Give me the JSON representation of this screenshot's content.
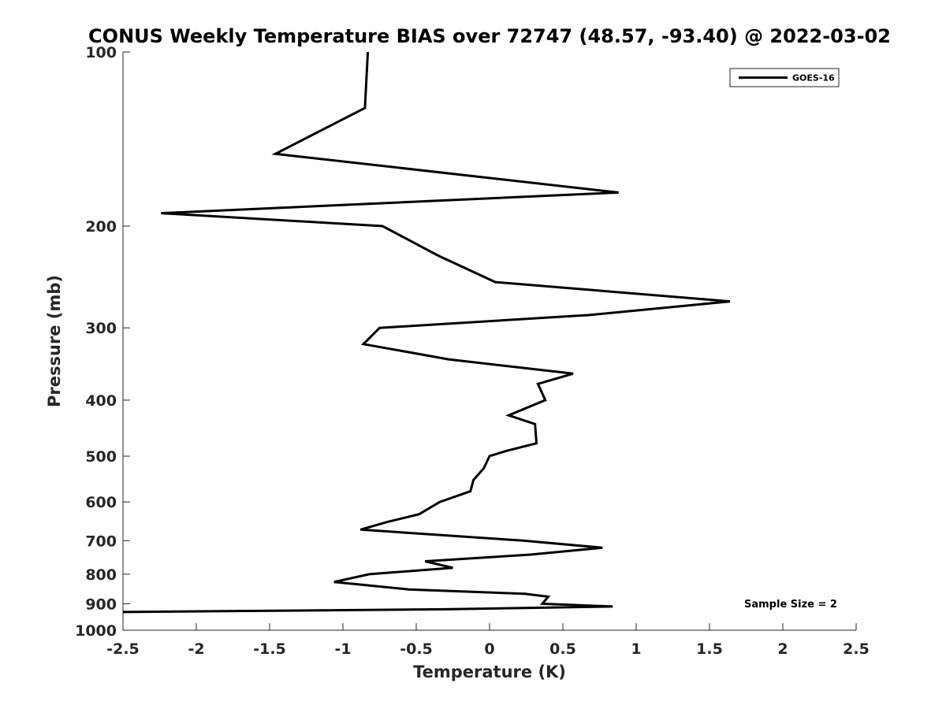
{
  "chart_data": {
    "type": "line",
    "title": "CONUS Weekly Temperature BIAS over 72747 (48.57, -93.40) @ 2022-03-02",
    "xlabel": "Temperature (K)",
    "ylabel": "Pressure (mb)",
    "xlim": [
      -2.5,
      2.5
    ],
    "ylim": [
      1000,
      100
    ],
    "yscale": "log",
    "y_reversed": true,
    "xticks": [
      -2.5,
      -2,
      -1.5,
      -1,
      -0.5,
      0,
      0.5,
      1,
      1.5,
      2,
      2.5
    ],
    "xtick_labels": [
      "-2.5",
      "-2",
      "-1.5",
      "-1",
      "-0.5",
      "0",
      "0.5",
      "1",
      "1.5",
      "2",
      "2.5"
    ],
    "yticks": [
      100,
      200,
      300,
      400,
      500,
      600,
      700,
      800,
      900,
      1000
    ],
    "ytick_labels": [
      "100",
      "200",
      "300",
      "400",
      "500",
      "600",
      "700",
      "800",
      "900",
      "1000"
    ],
    "grid": false,
    "legend_position": "top-right",
    "annotation": "Sample Size = 2",
    "series": [
      {
        "name": "GOES-16",
        "color": "#000000",
        "x": [
          -0.83,
          -0.85,
          -1.46,
          0.88,
          -2.24,
          -0.73,
          -0.35,
          0.04,
          1.64,
          0.68,
          -0.75,
          -0.86,
          -0.28,
          0.57,
          0.33,
          0.38,
          0.13,
          0.31,
          0.32,
          0.11,
          0.0,
          -0.04,
          -0.11,
          -0.13,
          -0.34,
          -0.48,
          -0.7,
          -0.88,
          0.23,
          0.77,
          0.28,
          -0.44,
          -0.25,
          -0.82,
          -1.06,
          -0.55,
          0.24,
          0.4,
          0.36,
          0.84,
          -0.3,
          -2.5
        ],
        "y": [
          100,
          125,
          150,
          175,
          190,
          200,
          225,
          250,
          270,
          285,
          300,
          320,
          340,
          360,
          375,
          400,
          425,
          440,
          475,
          490,
          500,
          525,
          550,
          575,
          600,
          630,
          650,
          670,
          700,
          720,
          740,
          760,
          780,
          800,
          825,
          850,
          865,
          875,
          900,
          910,
          920,
          930
        ]
      }
    ]
  }
}
